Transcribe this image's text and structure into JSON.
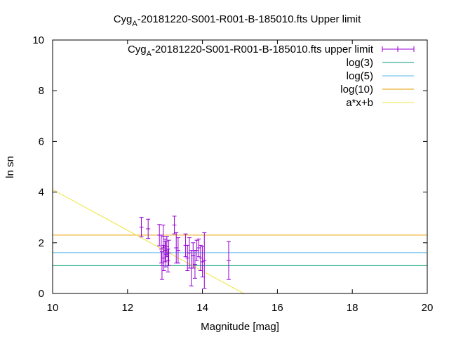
{
  "chart_data": {
    "type": "scatter",
    "title": {
      "main": "Cyg",
      "subscript": "A",
      "rest": "-20181220-S001-R001-B-185010.fts Upper limit"
    },
    "xlabel": "Magnitude [mag]",
    "ylabel": "ln sn",
    "xlim": [
      10,
      20
    ],
    "ylim": [
      0,
      10
    ],
    "xticks": [
      10,
      12,
      14,
      16,
      18,
      20
    ],
    "yticks": [
      0,
      2,
      4,
      6,
      8,
      10
    ],
    "grid": false,
    "legend_position": "top-right",
    "colors": {
      "points": "#9400d3",
      "log3": "#009e73",
      "log5": "#56b4e9",
      "log10": "#e69f00",
      "fit": "#f0e442"
    },
    "series": [
      {
        "name_main": "Cyg",
        "name_subscript": "A",
        "name_rest": "-20181220-S001-R001-B-185010.fts upper limit",
        "type": "errorbar",
        "points": [
          {
            "x": 12.37,
            "y": 2.62,
            "err": 0.38
          },
          {
            "x": 12.55,
            "y": 2.55,
            "err": 0.38
          },
          {
            "x": 12.85,
            "y": 2.3,
            "err": 0.42
          },
          {
            "x": 12.9,
            "y": 1.75,
            "err": 0.55
          },
          {
            "x": 12.92,
            "y": 1.1,
            "err": 0.55
          },
          {
            "x": 12.95,
            "y": 2.25,
            "err": 0.45
          },
          {
            "x": 12.97,
            "y": 1.4,
            "err": 0.5
          },
          {
            "x": 13.0,
            "y": 1.7,
            "err": 0.45
          },
          {
            "x": 13.02,
            "y": 1.55,
            "err": 0.5
          },
          {
            "x": 13.05,
            "y": 1.85,
            "err": 0.4
          },
          {
            "x": 13.08,
            "y": 1.3,
            "err": 0.45
          },
          {
            "x": 13.1,
            "y": 1.6,
            "err": 0.5
          },
          {
            "x": 13.25,
            "y": 2.7,
            "err": 0.35
          },
          {
            "x": 13.3,
            "y": 1.8,
            "err": 0.6
          },
          {
            "x": 13.35,
            "y": 1.7,
            "err": 0.5
          },
          {
            "x": 13.55,
            "y": 1.9,
            "err": 0.45
          },
          {
            "x": 13.6,
            "y": 1.4,
            "err": 0.5
          },
          {
            "x": 13.65,
            "y": 1.6,
            "err": 0.6
          },
          {
            "x": 13.7,
            "y": 1.0,
            "err": 0.7
          },
          {
            "x": 13.75,
            "y": 1.5,
            "err": 0.5
          },
          {
            "x": 13.8,
            "y": 1.15,
            "err": 0.55
          },
          {
            "x": 13.85,
            "y": 1.7,
            "err": 0.4
          },
          {
            "x": 13.9,
            "y": 1.8,
            "err": 0.35
          },
          {
            "x": 13.95,
            "y": 1.4,
            "err": 0.5
          },
          {
            "x": 14.0,
            "y": 1.25,
            "err": 0.6
          },
          {
            "x": 14.05,
            "y": 1.3,
            "err": 1.1
          },
          {
            "x": 14.7,
            "y": 1.3,
            "err": 0.75
          }
        ]
      },
      {
        "name": "log(3)",
        "type": "hline",
        "y": 1.0986
      },
      {
        "name": "log(5)",
        "type": "hline",
        "y": 1.6094
      },
      {
        "name": "log(10)",
        "type": "hline",
        "y": 2.3026
      },
      {
        "name": "a*x+b",
        "type": "line",
        "x": [
          10,
          15.1
        ],
        "y": [
          4.1,
          0
        ]
      }
    ]
  }
}
